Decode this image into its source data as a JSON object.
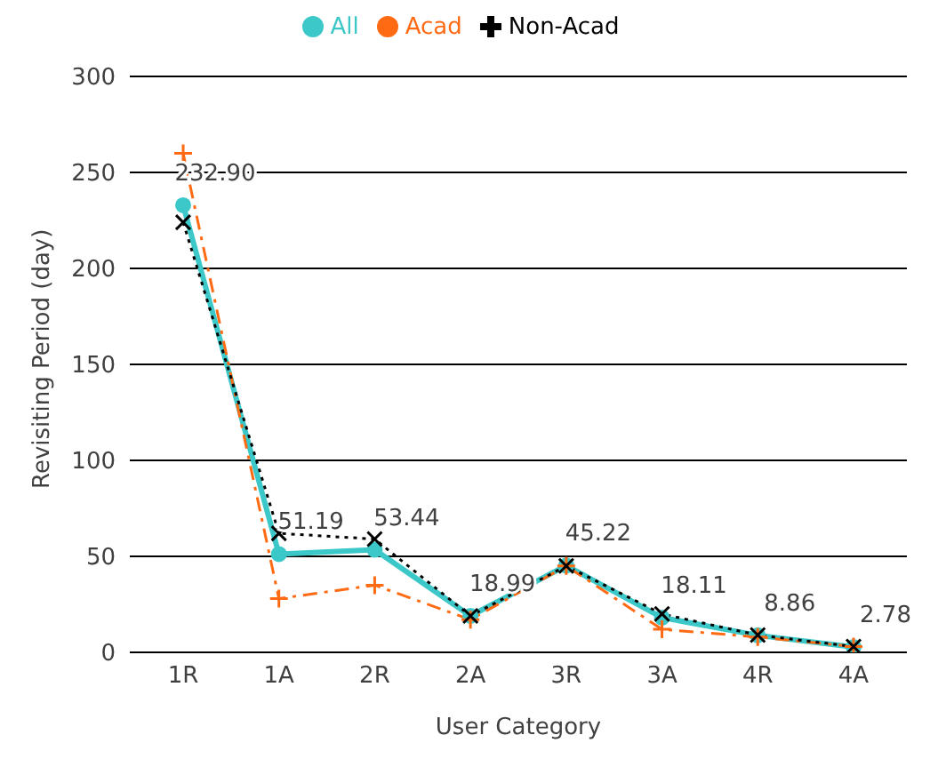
{
  "chart_data": {
    "type": "line",
    "xlabel": "User Category",
    "ylabel": "Revisiting Period (day)",
    "categories": [
      "1R",
      "1A",
      "2R",
      "2A",
      "3R",
      "3A",
      "4R",
      "4A"
    ],
    "series": [
      {
        "name": "All",
        "color": "#3cc8c8",
        "values": [
          232.9,
          51.19,
          53.44,
          18.99,
          45.22,
          18.11,
          8.86,
          2.78
        ],
        "value_labels": [
          "232.90",
          "51.19",
          "53.44",
          "18.99",
          "45.22",
          "18.11",
          "8.86",
          "2.78"
        ],
        "marker": "circle",
        "line_style": "solid"
      },
      {
        "name": "Acad",
        "color": "#ff6a13",
        "values": [
          260,
          28,
          35,
          17,
          45,
          12,
          8,
          3
        ],
        "marker": "cross",
        "line_style": "dashed"
      },
      {
        "name": "Non-Acad",
        "color": "#000000",
        "values": [
          224,
          62,
          59,
          19,
          45,
          20,
          9,
          3
        ],
        "marker": "cross",
        "line_style": "dotted"
      }
    ],
    "ylim": [
      0,
      300
    ],
    "yticks": [
      0,
      50,
      100,
      150,
      200,
      250,
      300
    ],
    "grid": "y",
    "legend": "top"
  }
}
